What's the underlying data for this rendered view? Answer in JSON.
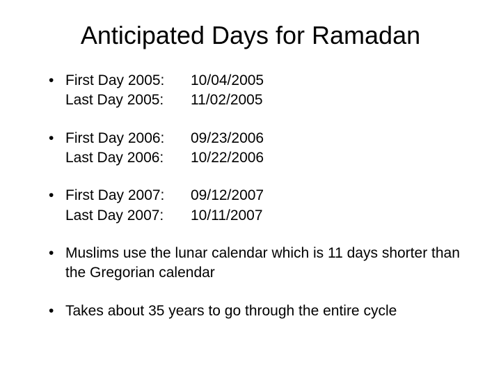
{
  "title": "Anticipated Days for Ramadan",
  "dateBlocks": [
    {
      "firstLabel": "First Day 2005:",
      "firstDate": "10/04/2005",
      "lastLabel": "Last Day 2005:",
      "lastDate": "11/02/2005"
    },
    {
      "firstLabel": "First Day 2006:",
      "firstDate": "09/23/2006",
      "lastLabel": "Last Day 2006:",
      "lastDate": "10/22/2006"
    },
    {
      "firstLabel": "First Day 2007:",
      "firstDate": "09/12/2007",
      "lastLabel": "Last Day 2007:",
      "lastDate": "10/11/2007"
    }
  ],
  "notes": [
    "Muslims use the lunar calendar which is 11 days shorter than the Gregorian calendar",
    "Takes about 35 years to go through the entire cycle"
  ],
  "colors": {
    "background": "#ffffff",
    "text": "#000000"
  },
  "fontsize": {
    "title": 36,
    "body": 21
  }
}
